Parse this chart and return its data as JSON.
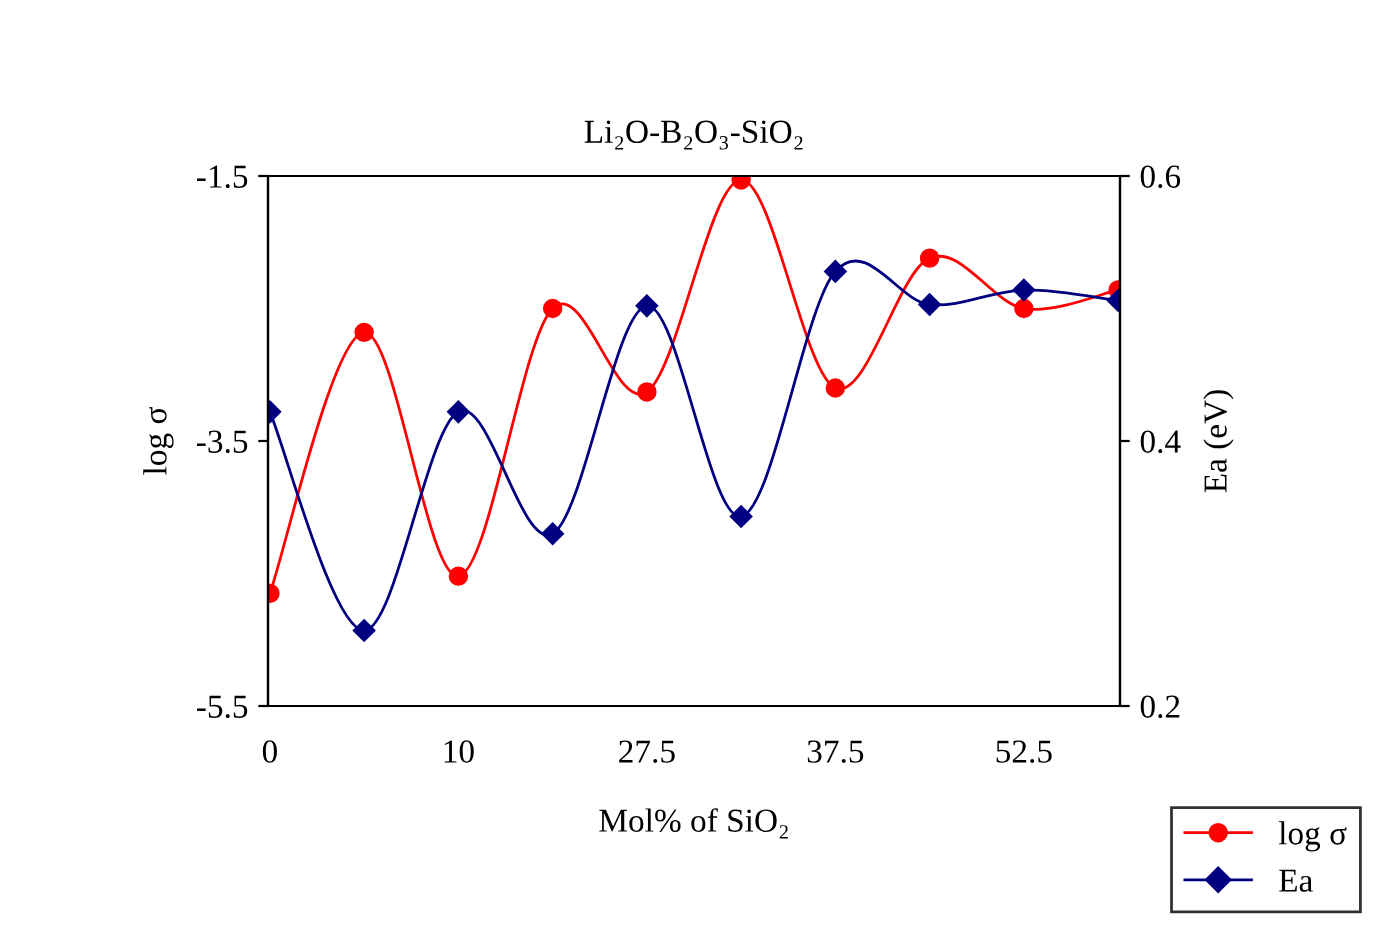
{
  "chart_data": {
    "type": "line",
    "title": "Li₂O-B₂O₃-SiO₂",
    "xlabel": "Mol% of SiO₂",
    "ylabel": "log σ",
    "y2label": "Ea (eV)",
    "categories": [
      "0",
      null,
      "10",
      null,
      "27.5",
      null,
      "37.5",
      null,
      "52.5",
      null
    ],
    "series": [
      {
        "name": "log σ",
        "color": "#ff0000",
        "marker": "circle",
        "values": [
          -4.65,
          -2.68,
          -4.52,
          -2.5,
          -3.13,
          -1.53,
          -3.1,
          -2.12,
          -2.5,
          -2.36
        ]
      },
      {
        "name": "Ea",
        "color": "#000080",
        "marker": "diamond",
        "axis": "y2",
        "values": [
          0.422,
          0.257,
          0.422,
          0.33,
          0.502,
          0.343,
          0.528,
          0.503,
          0.514,
          0.506
        ]
      }
    ],
    "ylim": [
      -5.5,
      -1.5
    ],
    "yticks": [
      -5.5,
      -3.5,
      -1.5
    ],
    "y2lim": [
      0.2,
      0.6
    ],
    "y2ticks": [
      0.2,
      0.4,
      0.6
    ],
    "grid": false,
    "legend": "bottom right"
  }
}
